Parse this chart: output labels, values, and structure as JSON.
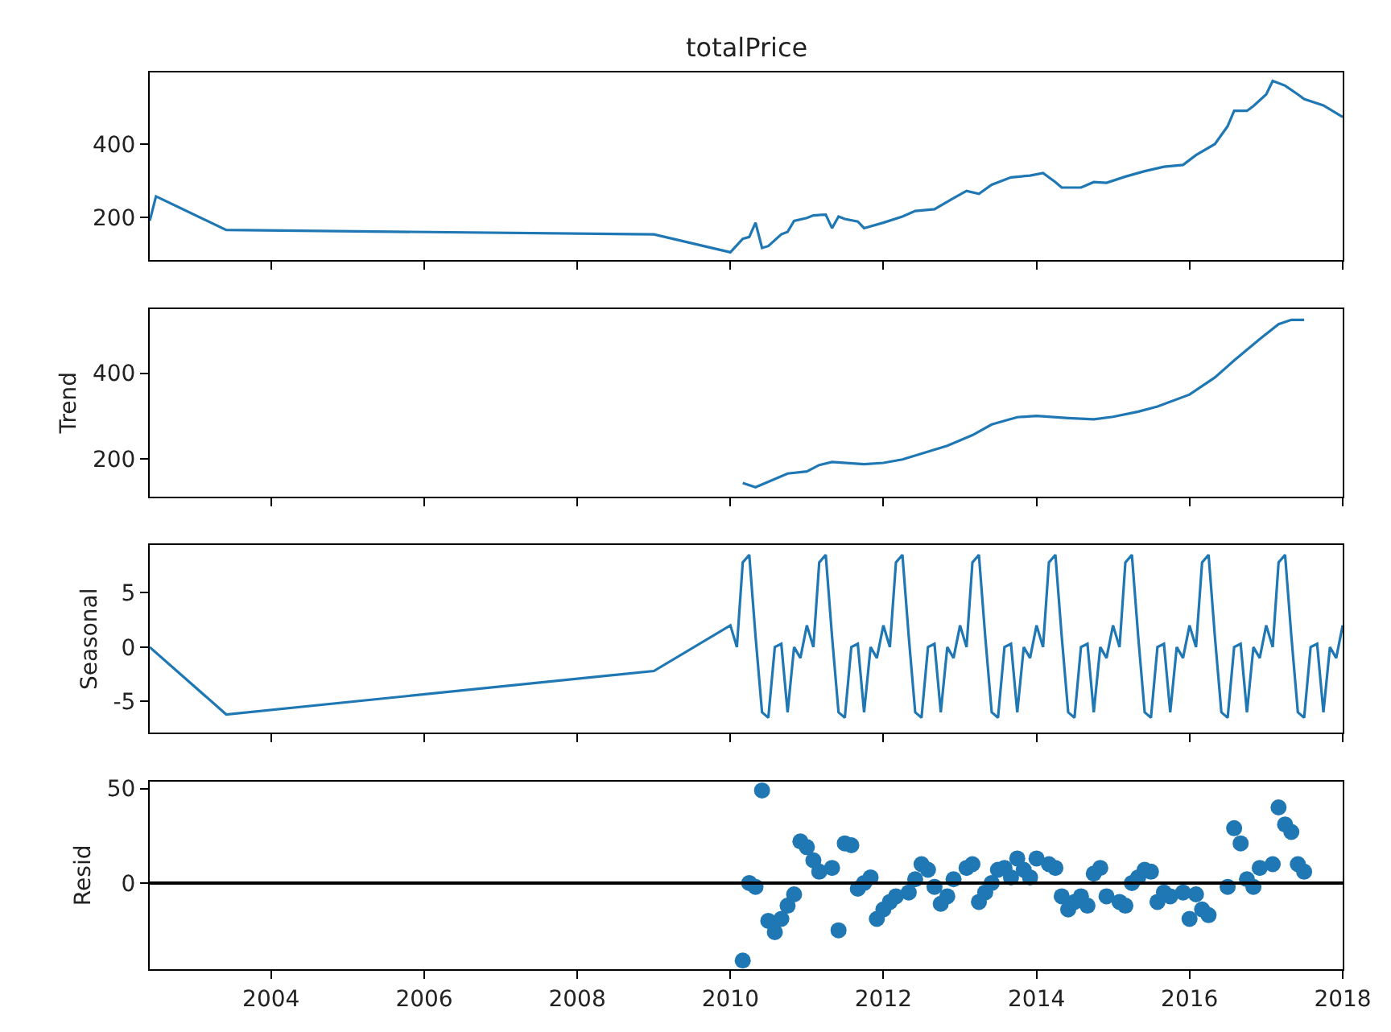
{
  "chart_data": [
    {
      "type": "line",
      "title": "totalPrice",
      "xlim": [
        "2002-06",
        "2018-01"
      ],
      "xticks": [
        "2004",
        "2006",
        "2008",
        "2010",
        "2012",
        "2014",
        "2016",
        "2018"
      ],
      "ylim": [
        82,
        596
      ],
      "yticks": [
        200,
        400
      ],
      "tick_labels": "y",
      "series": [
        {
          "color": "#1f77b4",
          "x": [
            "2002-06",
            "2002-07",
            "2003-06",
            "2009-01",
            "2010-01",
            "2010-03",
            "2010-04",
            "2010-05",
            "2010-06",
            "2010-07",
            "2010-09",
            "2010-10",
            "2010-11",
            "2011-01",
            "2011-02",
            "2011-04",
            "2011-05",
            "2011-06",
            "2011-07",
            "2011-09",
            "2011-10",
            "2012-01",
            "2012-04",
            "2012-06",
            "2012-09",
            "2012-12",
            "2013-02",
            "2013-04",
            "2013-06",
            "2013-09",
            "2013-12",
            "2014-02",
            "2014-04",
            "2014-05",
            "2014-08",
            "2014-10",
            "2014-12",
            "2015-03",
            "2015-06",
            "2015-09",
            "2015-12",
            "2016-02",
            "2016-05",
            "2016-07",
            "2016-08",
            "2016-10",
            "2016-11",
            "2017-01",
            "2017-02",
            "2017-04",
            "2017-06",
            "2017-07",
            "2017-10",
            "2018-01"
          ],
          "values": [
            190,
            257,
            165,
            153,
            104,
            141,
            146,
            185,
            116,
            121,
            153,
            160,
            190,
            198,
            205,
            207,
            170,
            202,
            195,
            188,
            170,
            185,
            202,
            217,
            222,
            252,
            272,
            264,
            289,
            309,
            314,
            321,
            296,
            281,
            281,
            296,
            294,
            311,
            326,
            338,
            343,
            370,
            400,
            449,
            491,
            491,
            504,
            536,
            573,
            560,
            536,
            523,
            506,
            474
          ]
        }
      ]
    },
    {
      "type": "line",
      "ylabel": "Trend",
      "xlim": [
        "2002-06",
        "2018-01"
      ],
      "xticks": [
        "2004",
        "2006",
        "2008",
        "2010",
        "2012",
        "2014",
        "2016",
        "2018"
      ],
      "ylim": [
        111,
        551
      ],
      "yticks": [
        200,
        400
      ],
      "tick_labels": "y",
      "series": [
        {
          "color": "#1f77b4",
          "x": [
            "2010-03",
            "2010-05",
            "2010-10",
            "2011-01",
            "2011-03",
            "2011-05",
            "2011-10",
            "2012-01",
            "2012-04",
            "2012-11",
            "2013-03",
            "2013-06",
            "2013-10",
            "2014-01",
            "2014-06",
            "2014-10",
            "2015-01",
            "2015-05",
            "2015-08",
            "2016-01",
            "2016-05",
            "2016-08",
            "2016-12",
            "2017-03",
            "2017-05",
            "2017-07"
          ],
          "values": [
            143,
            133,
            165,
            170,
            185,
            192,
            187,
            190,
            198,
            230,
            255,
            280,
            297,
            300,
            295,
            292,
            298,
            310,
            322,
            350,
            390,
            430,
            480,
            515,
            525,
            525
          ]
        }
      ]
    },
    {
      "type": "line",
      "ylabel": "Seasonal",
      "xlim": [
        "2002-06",
        "2018-01"
      ],
      "xticks": [
        "2004",
        "2006",
        "2008",
        "2010",
        "2012",
        "2014",
        "2016",
        "2018"
      ],
      "ylim": [
        -7.9,
        9.4
      ],
      "yticks": [
        -5,
        0,
        5
      ],
      "tick_labels": "y",
      "series": [
        {
          "color": "#1f77b4",
          "x": [
            "2002-06",
            "2003-06",
            "2009-01",
            "2010-01",
            "2010-02",
            "2010-03",
            "2010-04",
            "2010-05",
            "2010-06",
            "2010-07",
            "2010-08",
            "2010-09",
            "2010-10",
            "2010-11",
            "2010-12",
            "2011-01",
            "2011-02",
            "2011-03",
            "2011-04",
            "2011-05",
            "2011-06",
            "2011-07",
            "2011-08",
            "2011-09",
            "2011-10",
            "2011-11",
            "2011-12",
            "2012-01",
            "2012-02",
            "2012-03",
            "2012-04",
            "2012-05",
            "2012-06",
            "2012-07",
            "2012-08",
            "2012-09",
            "2012-10",
            "2012-11",
            "2012-12",
            "2013-01",
            "2013-02",
            "2013-03",
            "2013-04",
            "2013-05",
            "2013-06",
            "2013-07",
            "2013-08",
            "2013-09",
            "2013-10",
            "2013-11",
            "2013-12",
            "2014-01",
            "2014-02",
            "2014-03",
            "2014-04",
            "2014-05",
            "2014-06",
            "2014-07",
            "2014-08",
            "2014-09",
            "2014-10",
            "2014-11",
            "2014-12",
            "2015-01",
            "2015-02",
            "2015-03",
            "2015-04",
            "2015-05",
            "2015-06",
            "2015-07",
            "2015-08",
            "2015-09",
            "2015-10",
            "2015-11",
            "2015-12",
            "2016-01",
            "2016-02",
            "2016-03",
            "2016-04",
            "2016-05",
            "2016-06",
            "2016-07",
            "2016-08",
            "2016-09",
            "2016-10",
            "2016-11",
            "2016-12",
            "2017-01",
            "2017-02",
            "2017-03",
            "2017-04",
            "2017-05",
            "2017-06",
            "2017-07",
            "2017-08",
            "2017-09",
            "2017-10",
            "2017-11",
            "2017-12",
            "2018-01"
          ],
          "values": [
            0,
            -6.2,
            -2.2,
            2,
            0,
            7.8,
            8.5,
            1,
            -6,
            -6.5,
            0,
            0.3,
            -6,
            0,
            -1,
            2,
            0,
            7.8,
            8.5,
            1,
            -6,
            -6.5,
            0,
            0.3,
            -6,
            0,
            -1,
            2,
            0,
            7.8,
            8.5,
            1,
            -6,
            -6.5,
            0,
            0.3,
            -6,
            0,
            -1,
            2,
            0,
            7.8,
            8.5,
            1,
            -6,
            -6.5,
            0,
            0.3,
            -6,
            0,
            -1,
            2,
            0,
            7.8,
            8.5,
            1,
            -6,
            -6.5,
            0,
            0.3,
            -6,
            0,
            -1,
            2,
            0,
            7.8,
            8.5,
            1,
            -6,
            -6.5,
            0,
            0.3,
            -6,
            0,
            -1,
            2,
            0,
            7.8,
            8.5,
            1,
            -6,
            -6.5,
            0,
            0.3,
            -6,
            0,
            -1,
            2,
            0,
            7.8,
            8.5,
            1,
            -6,
            -6.5,
            0,
            0.3,
            -6,
            0,
            -1,
            2
          ]
        }
      ]
    },
    {
      "type": "scatter",
      "ylabel": "Resid",
      "marker": "circle",
      "xlim": [
        "2002-06",
        "2018-01"
      ],
      "xticks": [
        "2004",
        "2006",
        "2008",
        "2010",
        "2012",
        "2014",
        "2016",
        "2018"
      ],
      "ylim": [
        -45.6,
        53.8
      ],
      "yticks": [
        0,
        50
      ],
      "ref_lines": [
        {
          "axis": "y",
          "value": 0,
          "color": "#000000"
        }
      ],
      "series": [
        {
          "color": "#1f77b4",
          "x": [
            "2010-03",
            "2010-04",
            "2010-05",
            "2010-06",
            "2010-07",
            "2010-08",
            "2010-09",
            "2010-10",
            "2010-11",
            "2010-12",
            "2011-01",
            "2011-02",
            "2011-03",
            "2011-05",
            "2011-06",
            "2011-07",
            "2011-08",
            "2011-09",
            "2011-10",
            "2011-11",
            "2011-12",
            "2012-01",
            "2012-02",
            "2012-03",
            "2012-05",
            "2012-06",
            "2012-07",
            "2012-08",
            "2012-09",
            "2012-10",
            "2012-11",
            "2012-12",
            "2013-02",
            "2013-03",
            "2013-04",
            "2013-05",
            "2013-06",
            "2013-07",
            "2013-08",
            "2013-09",
            "2013-10",
            "2013-11",
            "2013-12",
            "2014-01",
            "2014-03",
            "2014-04",
            "2014-05",
            "2014-06",
            "2014-07",
            "2014-08",
            "2014-09",
            "2014-10",
            "2014-11",
            "2014-12",
            "2015-02",
            "2015-03",
            "2015-04",
            "2015-05",
            "2015-06",
            "2015-07",
            "2015-08",
            "2015-09",
            "2015-10",
            "2015-12",
            "2016-01",
            "2016-02",
            "2016-03",
            "2016-04",
            "2016-07",
            "2016-08",
            "2016-09",
            "2016-10",
            "2016-11",
            "2016-12",
            "2017-02",
            "2017-03",
            "2017-04",
            "2017-05",
            "2017-06",
            "2017-07"
          ],
          "values": [
            -41,
            0,
            -2,
            49,
            -20,
            -26,
            -19,
            -12,
            -6,
            22,
            19,
            12,
            6,
            8,
            -25,
            21,
            20,
            -3,
            0,
            3,
            -19,
            -14,
            -10,
            -7,
            -5,
            2,
            10,
            7,
            -2,
            -11,
            -7,
            2,
            8,
            10,
            -10,
            -5,
            0,
            7,
            8,
            3,
            13,
            7,
            3,
            13,
            10,
            8,
            -7,
            -14,
            -10,
            -7,
            -12,
            5,
            8,
            -7,
            -10,
            -12,
            0,
            3,
            7,
            6,
            -10,
            -5,
            -7,
            -5,
            -19,
            -6,
            -14,
            -17,
            -2,
            29,
            21,
            2,
            -2,
            8,
            10,
            40,
            31,
            27,
            10,
            6
          ]
        }
      ]
    }
  ]
}
